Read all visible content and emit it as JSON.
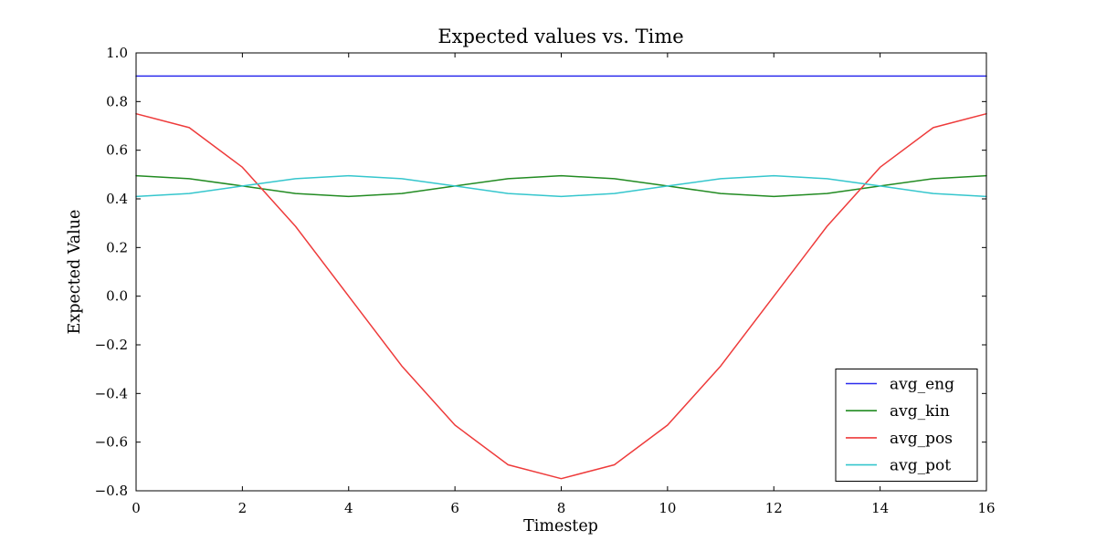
{
  "chart_data": {
    "type": "line",
    "title": "Expected values vs. Time",
    "xlabel": "Timestep",
    "ylabel": "Expected Value",
    "xlim": [
      0,
      16
    ],
    "ylim": [
      -0.8,
      1.0
    ],
    "grid": false,
    "background_color": "#ffffff",
    "axes_color": "#000000",
    "xticks": {
      "values": [
        0,
        2,
        4,
        6,
        8,
        10,
        12,
        14,
        16
      ],
      "labels": [
        "0",
        "2",
        "4",
        "6",
        "8",
        "10",
        "12",
        "14",
        "16"
      ]
    },
    "yticks": {
      "values": [
        1.0,
        0.8,
        0.6,
        0.4,
        0.2,
        0.0,
        -0.2,
        -0.4,
        -0.6,
        -0.8
      ],
      "labels": [
        "1.0",
        "0.8",
        "0.6",
        "0.4",
        "0.2",
        "0.0",
        "−0.2",
        "−0.4",
        "−0.6",
        "−0.8"
      ]
    },
    "x": [
      0,
      1,
      2,
      3,
      4,
      5,
      6,
      7,
      8,
      9,
      10,
      11,
      12,
      13,
      14,
      15,
      16
    ],
    "series": [
      {
        "name": "avg_eng",
        "color": "#2b2bee",
        "values": [
          0.905,
          0.905,
          0.905,
          0.905,
          0.905,
          0.905,
          0.905,
          0.905,
          0.905,
          0.905,
          0.905,
          0.905,
          0.905,
          0.905,
          0.905,
          0.905,
          0.905
        ]
      },
      {
        "name": "avg_kin",
        "color": "#228b22",
        "values": [
          0.495,
          0.483,
          0.453,
          0.422,
          0.41,
          0.422,
          0.453,
          0.483,
          0.495,
          0.483,
          0.453,
          0.422,
          0.41,
          0.422,
          0.453,
          0.483,
          0.495
        ]
      },
      {
        "name": "avg_pos",
        "color": "#ee3b3b",
        "values": [
          0.75,
          0.693,
          0.53,
          0.287,
          0.0,
          -0.287,
          -0.53,
          -0.693,
          -0.75,
          -0.693,
          -0.53,
          -0.287,
          0.0,
          0.287,
          0.53,
          0.693,
          0.75
        ]
      },
      {
        "name": "avg_pot",
        "color": "#35c6cd",
        "values": [
          0.41,
          0.422,
          0.453,
          0.483,
          0.495,
          0.483,
          0.453,
          0.422,
          0.41,
          0.422,
          0.453,
          0.483,
          0.495,
          0.483,
          0.453,
          0.422,
          0.41
        ]
      }
    ],
    "legend": {
      "position": "lower-right",
      "entries": [
        "avg_eng",
        "avg_kin",
        "avg_pos",
        "avg_pot"
      ]
    }
  }
}
